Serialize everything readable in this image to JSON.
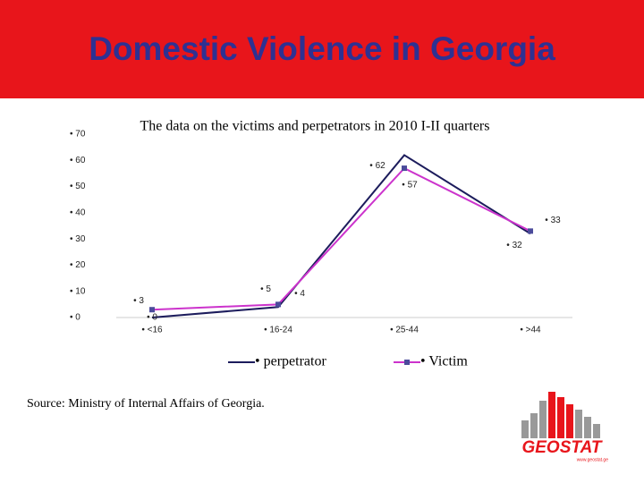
{
  "title": "Domestic Violence in Georgia",
  "chart_data": {
    "type": "line",
    "title": "The data on the victims and perpetrators in 2010 I-II quarters",
    "categories": [
      "• <16",
      "• 16-24",
      "• 25-44",
      "• >44"
    ],
    "series": [
      {
        "name": "• perpetrator",
        "color": "#1c1c5c",
        "values": [
          0,
          4,
          62,
          32
        ],
        "value_labels": [
          "• 0",
          "• 4",
          "• 62",
          "• 32"
        ]
      },
      {
        "name": "• Victim",
        "color": "#cc33cc",
        "marker_color": "#4b4b9b",
        "values": [
          3,
          5,
          57,
          33
        ],
        "value_labels": [
          "• 3",
          "• 5",
          "• 57",
          "• 33"
        ]
      }
    ],
    "ylim": [
      0,
      70
    ],
    "yticks": [
      {
        "value": 0,
        "label": "• 0"
      },
      {
        "value": 10,
        "label": "• 10"
      },
      {
        "value": 20,
        "label": "• 20"
      },
      {
        "value": 30,
        "label": "• 30"
      },
      {
        "value": 40,
        "label": "• 40"
      },
      {
        "value": 50,
        "label": "• 50"
      },
      {
        "value": 60,
        "label": "• 60"
      },
      {
        "value": 70,
        "label": "• 70"
      }
    ],
    "legend": "bottom"
  },
  "source": "Source: Ministry of Internal Affairs of Georgia.",
  "logo": {
    "text": "GEOSTAT",
    "url": "www.geostat.ge"
  }
}
